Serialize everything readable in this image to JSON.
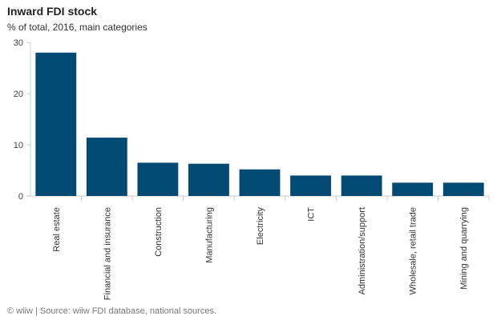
{
  "header": {
    "title": "Inward FDI stock",
    "subtitle": "% of total, 2016, main categories"
  },
  "footer": {
    "source": "© wiiw | Source: wiiw FDI database, national sources."
  },
  "colors": {
    "bar": "#004a74",
    "axis": "#cccccc",
    "grid": "#e6e6e6"
  },
  "chart_data": {
    "type": "bar",
    "title": "Inward FDI stock",
    "subtitle": "% of total, 2016, main categories",
    "xlabel": "",
    "ylabel": "",
    "categories": [
      "Real estate",
      "Financial and insurance",
      "Construction",
      "Manufacturing",
      "Electricity",
      "ICT",
      "Administration/support",
      "Wholesale, retail trade",
      "Mining and quarrying"
    ],
    "values": [
      28.0,
      11.4,
      6.5,
      6.3,
      5.2,
      4.0,
      4.0,
      2.6,
      2.6
    ],
    "ylim": [
      0,
      30
    ],
    "yticks": [
      0,
      10,
      20,
      30
    ],
    "grid": false,
    "legend": "none"
  }
}
